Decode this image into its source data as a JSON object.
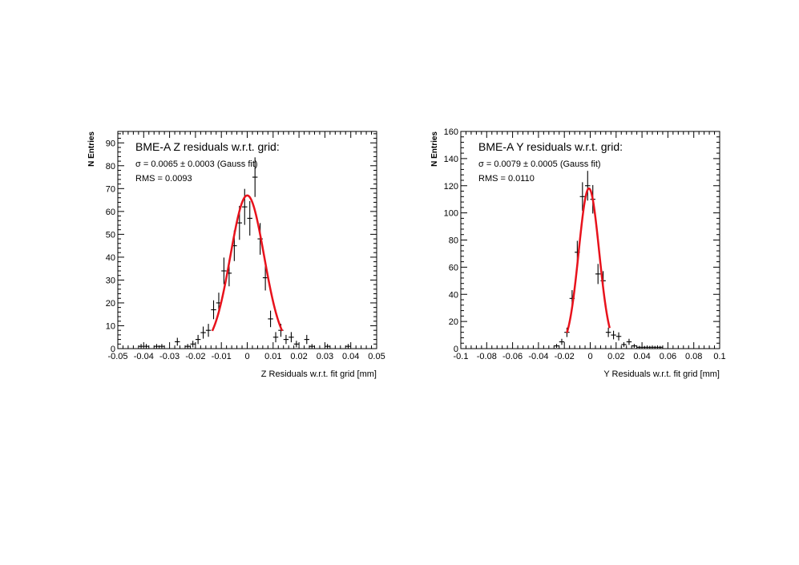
{
  "chart_data": [
    {
      "type": "scatter",
      "title": "BME-A Z residuals w.r.t. grid:",
      "annotations": [
        "σ = 0.0065 ± 0.0003 (Gauss fit)",
        "RMS = 0.0093"
      ],
      "xlabel": "Z Residuals w.r.t. fit grid [mm]",
      "ylabel": "N Entries",
      "xlim": [
        -0.05,
        0.05
      ],
      "ylim": [
        0,
        95
      ],
      "x_ticks": [
        -0.05,
        -0.04,
        -0.03,
        -0.02,
        -0.01,
        0,
        0.01,
        0.02,
        0.03,
        0.04,
        0.05
      ],
      "x_tick_labels": [
        "-0.05",
        "-0.04",
        "-0.03",
        "-0.02",
        "-0.01",
        "0",
        "0.01",
        "0.02",
        "0.03",
        "0.04",
        "0.05"
      ],
      "y_ticks": [
        0,
        10,
        20,
        30,
        40,
        50,
        60,
        70,
        80,
        90
      ],
      "y_tick_labels": [
        "0",
        "10",
        "20",
        "30",
        "40",
        "50",
        "60",
        "70",
        "80",
        "90"
      ],
      "bin_width": 0.002,
      "series": [
        {
          "x": [
            -0.041,
            -0.039,
            -0.035,
            -0.033,
            -0.027,
            -0.023,
            -0.021,
            -0.019,
            -0.017,
            -0.015,
            -0.013,
            -0.011,
            -0.009,
            -0.007,
            -0.005,
            -0.003,
            -0.001,
            0.001,
            0.003,
            0.005,
            0.007,
            0.009,
            0.011,
            0.013,
            0.015,
            0.017,
            0.019,
            0.023,
            0.025,
            0.031,
            0.039
          ],
          "y": [
            1,
            1,
            1,
            1,
            3,
            1,
            2,
            4,
            7,
            8,
            17,
            20,
            34,
            33,
            45,
            55,
            62,
            57,
            75,
            48,
            31,
            13,
            5,
            8,
            4,
            5,
            2,
            4,
            1,
            1,
            1
          ]
        }
      ],
      "fit": {
        "mean": 0.0,
        "sigma": 0.0065,
        "amplitude": 67,
        "range": [
          -0.0135,
          0.0135
        ],
        "color": "#e8121c"
      }
    },
    {
      "type": "scatter",
      "title": "BME-A Y residuals w.r.t. grid:",
      "annotations": [
        "σ = 0.0079 ± 0.0005 (Gauss fit)",
        "RMS = 0.0110"
      ],
      "xlabel": "Y Residuals w.r.t. fit grid [mm]",
      "ylabel": "N Entries",
      "xlim": [
        -0.1,
        0.1
      ],
      "ylim": [
        0,
        160
      ],
      "x_ticks": [
        -0.1,
        -0.08,
        -0.06,
        -0.04,
        -0.02,
        0,
        0.02,
        0.04,
        0.06,
        0.08,
        0.1
      ],
      "x_tick_labels": [
        "-0.1",
        "-0.08",
        "-0.06",
        "-0.04",
        "-0.02",
        "0",
        "0.02",
        "0.04",
        "0.06",
        "0.08",
        "0.1"
      ],
      "y_ticks": [
        0,
        20,
        40,
        60,
        80,
        100,
        120,
        140,
        160
      ],
      "y_tick_labels": [
        "0",
        "20",
        "40",
        "60",
        "80",
        "100",
        "120",
        "140",
        "160"
      ],
      "bin_width": 0.004,
      "series": [
        {
          "x": [
            -0.026,
            -0.022,
            -0.018,
            -0.014,
            -0.01,
            -0.006,
            -0.002,
            0.002,
            0.006,
            0.01,
            0.014,
            0.018,
            0.022,
            0.026,
            0.03,
            0.034,
            0.038,
            0.042,
            0.046,
            0.05,
            0.054
          ],
          "y": [
            2,
            5,
            12,
            37,
            71,
            112,
            120,
            110,
            55,
            50,
            12,
            10,
            9,
            3,
            5,
            2,
            1,
            1,
            1,
            1,
            1
          ]
        }
      ],
      "fit": {
        "mean": -0.001,
        "sigma": 0.0079,
        "amplitude": 118,
        "range": [
          -0.018,
          0.015
        ],
        "color": "#e8121c"
      }
    }
  ]
}
